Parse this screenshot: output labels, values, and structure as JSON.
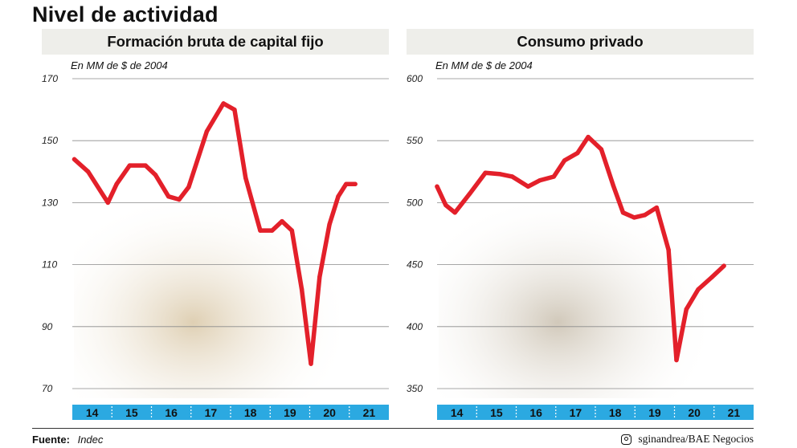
{
  "title": "Nivel de actividad",
  "footer": {
    "source_label": "Fuente:",
    "source_value": "Indec",
    "credit": "sginandrea/BAE Negocios",
    "credit_icon": "instagram-icon"
  },
  "colors": {
    "line": "#e3202a",
    "axis_bar": "#2ba9e1",
    "header_bg": "#eeeeea"
  },
  "chart_data": [
    {
      "type": "line",
      "title": "Formación bruta de capital fijo",
      "unit_label": "En MM de $ de 2004",
      "ylim": [
        70,
        170
      ],
      "yticks": [
        70,
        90,
        110,
        130,
        150,
        170
      ],
      "years": [
        "14",
        "15",
        "16",
        "17",
        "18",
        "19",
        "20",
        "21"
      ],
      "x": [
        0.05,
        0.4,
        0.9,
        1.12,
        1.45,
        1.85,
        2.1,
        2.43,
        2.7,
        2.94,
        3.4,
        3.82,
        4.1,
        4.38,
        4.75,
        5.05,
        5.3,
        5.55,
        5.8,
        6.03,
        6.25,
        6.5,
        6.72,
        6.92,
        7.15
      ],
      "values": [
        144,
        140,
        130,
        136,
        142,
        142,
        139,
        132,
        131,
        135,
        153,
        162,
        160,
        138,
        121,
        121,
        124,
        121,
        102,
        78,
        106,
        123,
        132,
        136,
        136
      ],
      "series": [
        {
          "name": "",
          "color": "#e3202a"
        }
      ],
      "grid": true
    },
    {
      "type": "line",
      "title": "Consumo privado",
      "unit_label": "En MM de $ de 2004",
      "ylim": [
        350,
        600
      ],
      "yticks": [
        350,
        400,
        450,
        500,
        550,
        600
      ],
      "years": [
        "14",
        "15",
        "16",
        "17",
        "18",
        "19",
        "20",
        "21"
      ],
      "x": [
        0.0,
        0.22,
        0.45,
        0.82,
        1.22,
        1.6,
        1.9,
        2.3,
        2.6,
        2.95,
        3.22,
        3.55,
        3.82,
        4.15,
        4.45,
        4.7,
        4.98,
        5.25,
        5.55,
        5.85,
        6.05,
        6.3,
        6.6,
        6.95,
        7.25
      ],
      "values": [
        513,
        498,
        492,
        507,
        524,
        523,
        521,
        513,
        518,
        521,
        534,
        540,
        553,
        543,
        514,
        492,
        488,
        490,
        496,
        462,
        373,
        414,
        430,
        440,
        449
      ],
      "series": [
        {
          "name": "",
          "color": "#e3202a"
        }
      ],
      "grid": true
    }
  ]
}
